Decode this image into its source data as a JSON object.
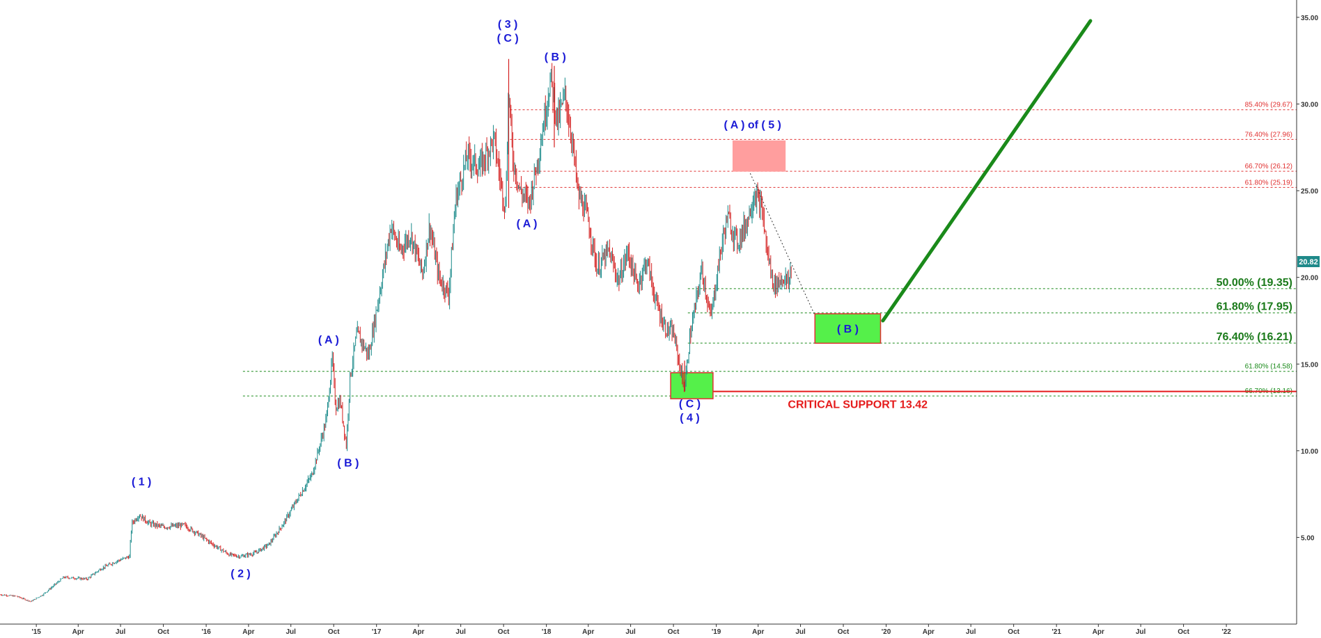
{
  "chart_data": {
    "type": "candlestick",
    "y_axis": {
      "side": "right",
      "ylim": [
        0.0,
        36.0
      ],
      "ticks": [
        "5.00",
        "10.00",
        "15.00",
        "20.00",
        "25.00",
        "30.00",
        "35.00"
      ],
      "tick_values": [
        5,
        10,
        15,
        20,
        25,
        30,
        35
      ]
    },
    "x_axis": {
      "xlim": [
        "2014-10-15",
        "2022-06-01"
      ],
      "ticks": [
        {
          "label": "'15",
          "date": "2015-01-01"
        },
        {
          "label": "Apr",
          "date": "2015-04-01"
        },
        {
          "label": "Jul",
          "date": "2015-07-01"
        },
        {
          "label": "Oct",
          "date": "2015-10-01"
        },
        {
          "label": "'16",
          "date": "2016-01-01"
        },
        {
          "label": "Apr",
          "date": "2016-04-01"
        },
        {
          "label": "Jul",
          "date": "2016-07-01"
        },
        {
          "label": "Oct",
          "date": "2016-10-01"
        },
        {
          "label": "'17",
          "date": "2017-01-01"
        },
        {
          "label": "Apr",
          "date": "2017-04-01"
        },
        {
          "label": "Jul",
          "date": "2017-07-01"
        },
        {
          "label": "Oct",
          "date": "2017-10-01"
        },
        {
          "label": "'18",
          "date": "2018-01-01"
        },
        {
          "label": "Apr",
          "date": "2018-04-01"
        },
        {
          "label": "Jul",
          "date": "2018-07-01"
        },
        {
          "label": "Oct",
          "date": "2018-10-01"
        },
        {
          "label": "'19",
          "date": "2019-01-01"
        },
        {
          "label": "Apr",
          "date": "2019-04-01"
        },
        {
          "label": "Jul",
          "date": "2019-07-01"
        },
        {
          "label": "Oct",
          "date": "2019-10-01"
        },
        {
          "label": "'20",
          "date": "2020-01-01"
        },
        {
          "label": "Apr",
          "date": "2020-04-01"
        },
        {
          "label": "Jul",
          "date": "2020-07-01"
        },
        {
          "label": "Oct",
          "date": "2020-10-01"
        },
        {
          "label": "'21",
          "date": "2021-01-01"
        },
        {
          "label": "Apr",
          "date": "2021-04-01"
        },
        {
          "label": "Jul",
          "date": "2021-07-01"
        },
        {
          "label": "Oct",
          "date": "2021-10-01"
        },
        {
          "label": "'22",
          "date": "2022-01-01"
        }
      ]
    },
    "price_path": [
      [
        "2014-10-15",
        1.7
      ],
      [
        "2014-11-20",
        1.6
      ],
      [
        "2014-12-20",
        1.3
      ],
      [
        "2015-01-15",
        1.7
      ],
      [
        "2015-03-01",
        2.7
      ],
      [
        "2015-04-20",
        2.6
      ],
      [
        "2015-05-20",
        3.2
      ],
      [
        "2015-06-20",
        3.6
      ],
      [
        "2015-07-20",
        3.9
      ],
      [
        "2015-07-25",
        5.8
      ],
      [
        "2015-08-10",
        6.3
      ],
      [
        "2015-09-01",
        5.8
      ],
      [
        "2015-10-01",
        5.6
      ],
      [
        "2015-11-15",
        5.7
      ],
      [
        "2015-12-15",
        5.2
      ],
      [
        "2016-01-15",
        4.6
      ],
      [
        "2016-02-20",
        4.0
      ],
      [
        "2016-03-15",
        3.9
      ],
      [
        "2016-04-15",
        4.1
      ],
      [
        "2016-05-15",
        4.6
      ],
      [
        "2016-06-15",
        5.8
      ],
      [
        "2016-07-15",
        7.2
      ],
      [
        "2016-08-15",
        8.6
      ],
      [
        "2016-09-01",
        10.3
      ],
      [
        "2016-09-15",
        11.8
      ],
      [
        "2016-09-28",
        15.3
      ],
      [
        "2016-10-05",
        12.5
      ],
      [
        "2016-10-15",
        12.9
      ],
      [
        "2016-10-28",
        10.3
      ],
      [
        "2016-11-05",
        14.2
      ],
      [
        "2016-11-20",
        16.8
      ],
      [
        "2016-12-15",
        15.5
      ],
      [
        "2017-01-10",
        19.5
      ],
      [
        "2017-02-01",
        23.0
      ],
      [
        "2017-02-20",
        21.5
      ],
      [
        "2017-03-15",
        22.5
      ],
      [
        "2017-04-10",
        20.2
      ],
      [
        "2017-04-25",
        23.0
      ],
      [
        "2017-05-15",
        20.0
      ],
      [
        "2017-06-05",
        19.0
      ],
      [
        "2017-06-20",
        24.5
      ],
      [
        "2017-07-15",
        27.0
      ],
      [
        "2017-08-10",
        26.3
      ],
      [
        "2017-09-10",
        28.0
      ],
      [
        "2017-09-25",
        25.5
      ],
      [
        "2017-10-05",
        24.0
      ],
      [
        "2017-10-12",
        31.0
      ],
      [
        "2017-10-20",
        27.0
      ],
      [
        "2017-11-05",
        25.0
      ],
      [
        "2017-11-25",
        24.3
      ],
      [
        "2017-12-15",
        27.0
      ],
      [
        "2018-01-10",
        31.5
      ],
      [
        "2018-01-25",
        29.0
      ],
      [
        "2018-02-10",
        30.5
      ],
      [
        "2018-02-25",
        28.0
      ],
      [
        "2018-03-10",
        24.8
      ],
      [
        "2018-03-30",
        23.5
      ],
      [
        "2018-04-20",
        20.5
      ],
      [
        "2018-05-15",
        21.5
      ],
      [
        "2018-06-05",
        19.8
      ],
      [
        "2018-06-25",
        21.5
      ],
      [
        "2018-07-15",
        19.5
      ],
      [
        "2018-08-05",
        21.0
      ],
      [
        "2018-08-25",
        18.5
      ],
      [
        "2018-09-15",
        17.0
      ],
      [
        "2018-10-01",
        16.8
      ],
      [
        "2018-10-15",
        14.8
      ],
      [
        "2018-10-25",
        13.6
      ],
      [
        "2018-11-05",
        16.5
      ],
      [
        "2018-12-01",
        20.5
      ],
      [
        "2018-12-20",
        17.6
      ],
      [
        "2019-01-10",
        21.5
      ],
      [
        "2019-01-25",
        23.5
      ],
      [
        "2019-02-15",
        22.0
      ],
      [
        "2019-03-05",
        23.0
      ],
      [
        "2019-03-25",
        24.9
      ],
      [
        "2019-04-10",
        23.8
      ],
      [
        "2019-04-20",
        21.5
      ],
      [
        "2019-05-05",
        19.5
      ],
      [
        "2019-05-25",
        20.0
      ],
      [
        "2019-06-05",
        19.6
      ],
      [
        "2019-06-12",
        20.8
      ]
    ],
    "last_price": "20.82",
    "projection_line": {
      "from": [
        "2019-12-25",
        17.5
      ],
      "to": [
        "2021-03-15",
        34.8
      ],
      "color": "#1a8a1a"
    },
    "dotted_trendline": {
      "from": [
        "2019-03-15",
        26.0
      ],
      "to": [
        "2019-08-01",
        17.8
      ]
    },
    "fib_levels_red": [
      {
        "label": "85.40% (29.67)",
        "value": 29.67,
        "from": "2017-10-15"
      },
      {
        "label": "76.40% (27.96)",
        "value": 27.96,
        "from": "2017-10-15"
      },
      {
        "label": "66.70% (26.12)",
        "value": 26.12,
        "from": "2017-10-15"
      },
      {
        "label": "61.80% (25.19)",
        "value": 25.19,
        "from": "2017-10-15"
      }
    ],
    "fib_levels_green_major": [
      {
        "label": "50.00% (19.35)",
        "value": 19.35,
        "from": "2018-11-01"
      },
      {
        "label": "61.80% (17.95)",
        "value": 17.95,
        "from": "2018-11-01"
      },
      {
        "label": "76.40% (16.21)",
        "value": 16.21,
        "from": "2018-11-01"
      }
    ],
    "fib_levels_green_minor": [
      {
        "label": "61.80% (14.58)",
        "value": 14.58,
        "from": "2016-03-20"
      },
      {
        "label": "66.70% (13.16)",
        "value": 13.16,
        "from": "2016-03-20"
      }
    ],
    "critical_support": {
      "label": "CRITICAL SUPPORT 13.42",
      "value": 13.42,
      "from": "2018-11-10",
      "color": "#e51b1b"
    },
    "zones": [
      {
        "kind": "target-pink",
        "x0": "2019-02-05",
        "x1": "2019-05-30",
        "y0": 26.1,
        "y1": 27.9,
        "label": ""
      },
      {
        "kind": "support-green",
        "x0": "2018-09-25",
        "x1": "2018-12-25",
        "y0": 13.0,
        "y1": 14.5,
        "label": ""
      },
      {
        "kind": "target-green",
        "x0": "2019-08-01",
        "x1": "2019-12-20",
        "y0": 16.2,
        "y1": 17.9,
        "label": "( B )"
      }
    ],
    "wave_labels": [
      {
        "text": "( 1 )",
        "date": "2015-08-15",
        "price": 8.0
      },
      {
        "text": "( 2 )",
        "date": "2016-03-15",
        "price": 2.7
      },
      {
        "text": "( A )",
        "date": "2016-09-20",
        "price": 16.2
      },
      {
        "text": "( B )",
        "date": "2016-11-01",
        "price": 9.1
      },
      {
        "text": "( 3 )",
        "date": "2017-10-10",
        "price": 34.4
      },
      {
        "text": "( C )",
        "date": "2017-10-10",
        "price": 33.6
      },
      {
        "text": "( A )",
        "date": "2017-11-20",
        "price": 22.9
      },
      {
        "text": "( B )",
        "date": "2018-01-20",
        "price": 32.5
      },
      {
        "text": "( A ) of ( 5 )",
        "date": "2019-03-20",
        "price": 28.6
      },
      {
        "text": "( C )",
        "date": "2018-11-05",
        "price": 12.5
      },
      {
        "text": "( 4 )",
        "date": "2018-11-05",
        "price": 11.7
      }
    ]
  }
}
